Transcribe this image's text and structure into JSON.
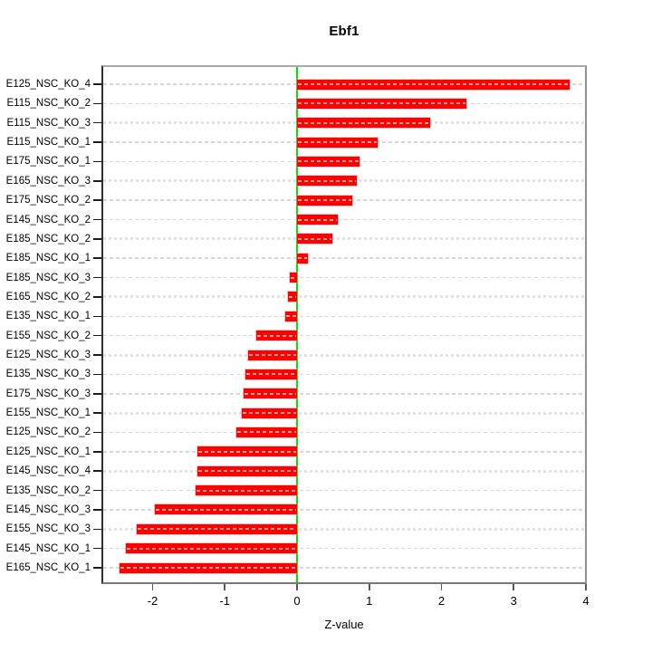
{
  "chart_data": {
    "type": "bar",
    "orientation": "horizontal",
    "title": "Ebf1",
    "xlabel": "Z-value",
    "categories": [
      "E125_NSC_KO_4",
      "E115_NSC_KO_2",
      "E115_NSC_KO_3",
      "E115_NSC_KO_1",
      "E175_NSC_KO_1",
      "E165_NSC_KO_3",
      "E175_NSC_KO_2",
      "E145_NSC_KO_2",
      "E185_NSC_KO_2",
      "E185_NSC_KO_1",
      "E185_NSC_KO_3",
      "E165_NSC_KO_2",
      "E135_NSC_KO_1",
      "E155_NSC_KO_2",
      "E125_NSC_KO_3",
      "E135_NSC_KO_3",
      "E175_NSC_KO_3",
      "E155_NSC_KO_1",
      "E125_NSC_KO_2",
      "E125_NSC_KO_1",
      "E145_NSC_KO_4",
      "E135_NSC_KO_2",
      "E145_NSC_KO_3",
      "E155_NSC_KO_3",
      "E145_NSC_KO_1",
      "E165_NSC_KO_1"
    ],
    "values": [
      3.77,
      2.34,
      1.84,
      1.12,
      0.86,
      0.83,
      0.76,
      0.56,
      0.49,
      0.15,
      -0.1,
      -0.12,
      -0.16,
      -0.57,
      -0.68,
      -0.71,
      -0.74,
      -0.76,
      -0.84,
      -1.38,
      -1.38,
      -1.4,
      -1.97,
      -2.22,
      -2.37,
      -2.46
    ],
    "x_ticks": [
      "-2",
      "-1",
      "0",
      "1",
      "2",
      "3",
      "4"
    ],
    "x_tick_values": [
      -2,
      -1,
      0,
      1,
      2,
      3,
      4
    ],
    "xlim": [
      -2.7,
      4.0
    ],
    "zero_reference_line": 0,
    "grid": "horizontal dashed line per category; every 3rd row heavier",
    "legend": "none",
    "colors": {
      "bar": "#ff0000",
      "bar_inner_dash": "#ffffff",
      "zero_line": "#00e400",
      "gridline": "#d8d8d8",
      "box": "#909090",
      "axis_text": "#000000"
    }
  }
}
